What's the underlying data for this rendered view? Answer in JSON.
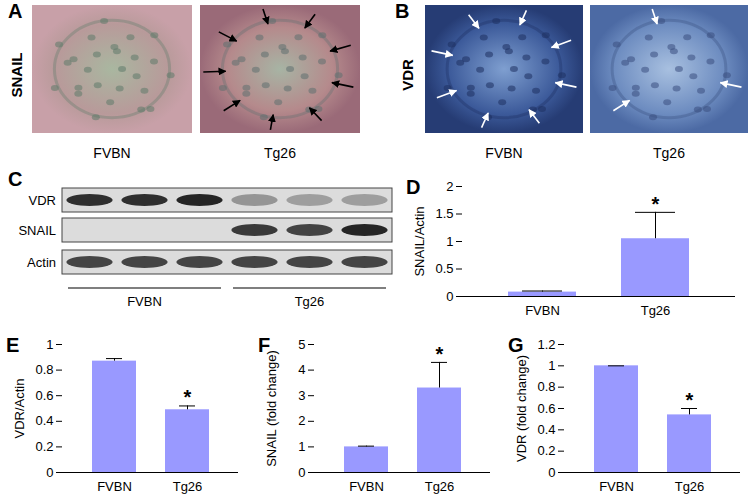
{
  "chart_data": [
    {
      "type": "bar",
      "panel": "D",
      "y_label": "SNAIL/Actin",
      "categories": [
        "FVBN",
        "Tg26"
      ],
      "values": [
        0.08,
        1.05
      ],
      "error": [
        0.02,
        0.48
      ],
      "color": "#9999ff",
      "ylim": [
        0,
        2
      ],
      "yticks": [
        0,
        0.5,
        1,
        1.5,
        2
      ],
      "annotations": [
        {
          "category": "Tg26",
          "text": "*"
        }
      ]
    },
    {
      "type": "bar",
      "panel": "E",
      "y_label": "VDR/Actin",
      "categories": [
        "FVBN",
        "Tg26"
      ],
      "values": [
        0.87,
        0.49
      ],
      "error": [
        0.02,
        0.03
      ],
      "color": "#9999ff",
      "ylim": [
        0,
        1
      ],
      "yticks": [
        0,
        0.2,
        0.4,
        0.6,
        0.8,
        1
      ],
      "annotations": [
        {
          "category": "Tg26",
          "text": "*"
        }
      ]
    },
    {
      "type": "bar",
      "panel": "F",
      "y_label": "SNAIL (fold change)",
      "categories": [
        "FVBN",
        "Tg26"
      ],
      "values": [
        1,
        3.3
      ],
      "error": [
        0.03,
        1.0
      ],
      "color": "#9999ff",
      "ylim": [
        0,
        5
      ],
      "yticks": [
        0,
        1,
        2,
        3,
        4,
        5
      ],
      "annotations": [
        {
          "category": "Tg26",
          "text": "*"
        }
      ]
    },
    {
      "type": "bar",
      "panel": "G",
      "y_label": "VDR (fold change)",
      "categories": [
        "FVBN",
        "Tg26"
      ],
      "values": [
        1,
        0.54
      ],
      "error": [
        0,
        0.06
      ],
      "color": "#9999ff",
      "ylim": [
        0,
        1.2
      ],
      "yticks": [
        0,
        0.2,
        0.4,
        0.6,
        0.8,
        1,
        1.2
      ],
      "annotations": [
        {
          "category": "Tg26",
          "text": "*"
        }
      ]
    }
  ],
  "image_panels": [
    {
      "panel": "A",
      "label": "SNAIL",
      "images": [
        "FVBN",
        "Tg26"
      ]
    },
    {
      "panel": "B",
      "label": "VDR",
      "images": [
        "FVBN",
        "Tg26"
      ]
    }
  ],
  "blot": {
    "panel": "C",
    "rows": [
      "VDR",
      "SNAIL",
      "Actin"
    ],
    "groups": [
      "FVBN",
      "Tg26"
    ]
  }
}
